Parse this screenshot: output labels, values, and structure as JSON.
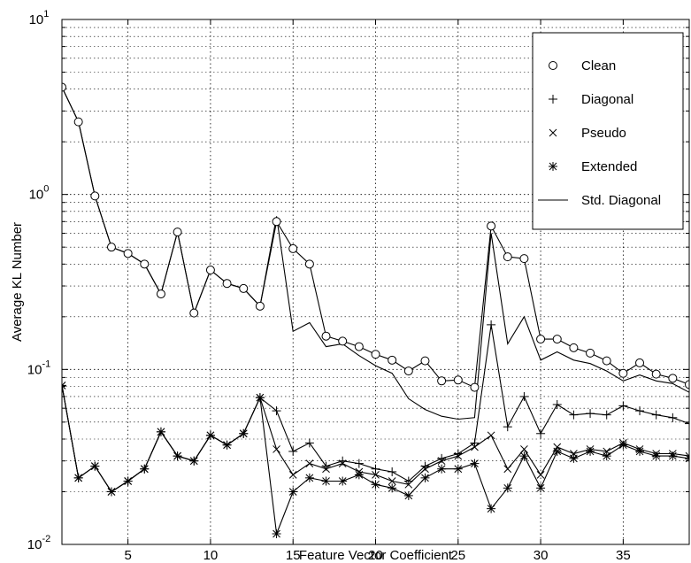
{
  "chart_data": {
    "type": "line",
    "title": "",
    "xlabel": "Feature Vector Coefficient",
    "ylabel": "Average KL Number",
    "x_scale": "linear",
    "y_scale": "log",
    "xlim": [
      1,
      39
    ],
    "ylim": [
      0.01,
      10
    ],
    "grid": true,
    "legend_position": "top-right",
    "x_ticks": [
      5,
      10,
      15,
      20,
      25,
      30,
      35
    ],
    "y_ticks": [
      {
        "value": 0.01,
        "base": "10",
        "exp": "-2"
      },
      {
        "value": 0.1,
        "base": "10",
        "exp": "-1"
      },
      {
        "value": 1,
        "base": "10",
        "exp": "0"
      },
      {
        "value": 10,
        "base": "10",
        "exp": "1"
      }
    ],
    "x": [
      1,
      2,
      3,
      4,
      5,
      6,
      7,
      8,
      9,
      10,
      11,
      12,
      13,
      14,
      15,
      16,
      17,
      18,
      19,
      20,
      21,
      22,
      23,
      24,
      25,
      26,
      27,
      28,
      29,
      30,
      31,
      32,
      33,
      34,
      35,
      36,
      37,
      38,
      39
    ],
    "series": [
      {
        "name": "Clean",
        "marker": "circle",
        "values": [
          4.1,
          2.6,
          0.98,
          0.5,
          0.46,
          0.4,
          0.27,
          0.61,
          0.21,
          0.37,
          0.31,
          0.29,
          0.23,
          0.7,
          0.49,
          0.4,
          0.155,
          0.145,
          0.135,
          0.122,
          0.113,
          0.098,
          0.112,
          0.086,
          0.087,
          0.079,
          0.66,
          0.44,
          0.43,
          0.149,
          0.149,
          0.133,
          0.124,
          0.112,
          0.095,
          0.109,
          0.094,
          0.089,
          0.082
        ]
      },
      {
        "name": "Diagonal",
        "marker": "plus",
        "values": [
          0.081,
          0.024,
          0.028,
          0.02,
          0.023,
          0.027,
          0.044,
          0.032,
          0.03,
          0.042,
          0.037,
          0.043,
          0.069,
          0.058,
          0.034,
          0.038,
          0.028,
          0.03,
          0.029,
          0.027,
          0.026,
          0.023,
          0.028,
          0.031,
          0.033,
          0.038,
          0.18,
          0.047,
          0.07,
          0.043,
          0.063,
          0.055,
          0.056,
          0.055,
          0.062,
          0.058,
          0.055,
          0.053,
          0.049
        ]
      },
      {
        "name": "Pseudo",
        "marker": "x",
        "values": [
          0.081,
          0.024,
          0.028,
          0.02,
          0.023,
          0.027,
          0.044,
          0.032,
          0.03,
          0.042,
          0.037,
          0.043,
          0.069,
          0.035,
          0.025,
          0.029,
          0.027,
          0.029,
          0.026,
          0.025,
          0.023,
          0.022,
          0.027,
          0.03,
          0.032,
          0.036,
          0.042,
          0.027,
          0.035,
          0.025,
          0.036,
          0.033,
          0.035,
          0.034,
          0.038,
          0.035,
          0.033,
          0.033,
          0.032
        ]
      },
      {
        "name": "Extended",
        "marker": "star",
        "values": [
          0.081,
          0.024,
          0.028,
          0.02,
          0.023,
          0.027,
          0.044,
          0.032,
          0.03,
          0.042,
          0.037,
          0.043,
          0.069,
          0.0115,
          0.02,
          0.024,
          0.023,
          0.023,
          0.025,
          0.022,
          0.021,
          0.019,
          0.024,
          0.027,
          0.027,
          0.029,
          0.016,
          0.021,
          0.032,
          0.021,
          0.034,
          0.031,
          0.034,
          0.032,
          0.037,
          0.034,
          0.032,
          0.032,
          0.031
        ]
      },
      {
        "name": "Std. Diagonal",
        "marker": "none",
        "values": [
          4.1,
          2.6,
          0.98,
          0.5,
          0.46,
          0.4,
          0.27,
          0.61,
          0.21,
          0.37,
          0.31,
          0.29,
          0.23,
          0.75,
          0.165,
          0.185,
          0.135,
          0.14,
          0.12,
          0.105,
          0.095,
          0.068,
          0.059,
          0.054,
          0.052,
          0.053,
          0.6,
          0.14,
          0.2,
          0.113,
          0.126,
          0.113,
          0.108,
          0.098,
          0.086,
          0.093,
          0.086,
          0.083,
          0.074
        ]
      }
    ]
  }
}
